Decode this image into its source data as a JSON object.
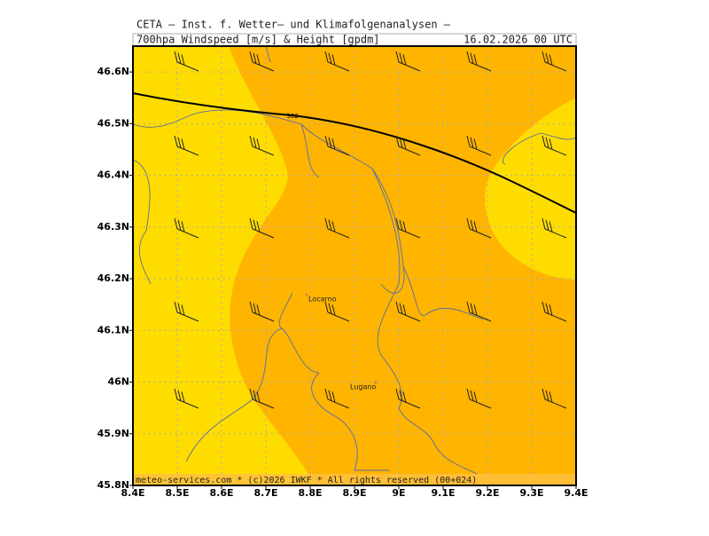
{
  "header": {
    "line1": "CETA – Inst. f. Wetter– und Klimafolgenanalysen –",
    "line2": "700hpa_Windspeed_[m/s]_&_Height_[gpdm]",
    "date": "16.02.2026 00 UTC"
  },
  "map": {
    "xlim": [
      8.4,
      9.4
    ],
    "ylim": [
      45.8,
      46.65
    ],
    "xticks": [
      {
        "value": 8.4,
        "label": "8.4E"
      },
      {
        "value": 8.5,
        "label": "8.5E"
      },
      {
        "value": 8.6,
        "label": "8.6E"
      },
      {
        "value": 8.7,
        "label": "8.7E"
      },
      {
        "value": 8.8,
        "label": "8.8E"
      },
      {
        "value": 8.9,
        "label": "8.9E"
      },
      {
        "value": 9,
        "label": "9E"
      },
      {
        "value": 9.1,
        "label": "9.1E"
      },
      {
        "value": 9.2,
        "label": "9.2E"
      },
      {
        "value": 9.3,
        "label": "9.3E"
      },
      {
        "value": 9.4,
        "label": "9.4E"
      }
    ],
    "yticks": [
      {
        "value": 45.8,
        "label": "45.8N"
      },
      {
        "value": 45.9,
        "label": "45.9N"
      },
      {
        "value": 46,
        "label": "46N"
      },
      {
        "value": 46.1,
        "label": "46.1N"
      },
      {
        "value": 46.2,
        "label": "46.2N"
      },
      {
        "value": 46.3,
        "label": "46.3N"
      },
      {
        "value": 46.4,
        "label": "46.4N"
      },
      {
        "value": 46.5,
        "label": "46.5N"
      },
      {
        "value": 46.6,
        "label": "46.6N"
      }
    ],
    "places": [
      "Locarno",
      "Lugano"
    ],
    "contour_label": "302",
    "footer": "meteo-services.com * (c)2026 IWKF * All rights reserved (00+024)"
  }
}
